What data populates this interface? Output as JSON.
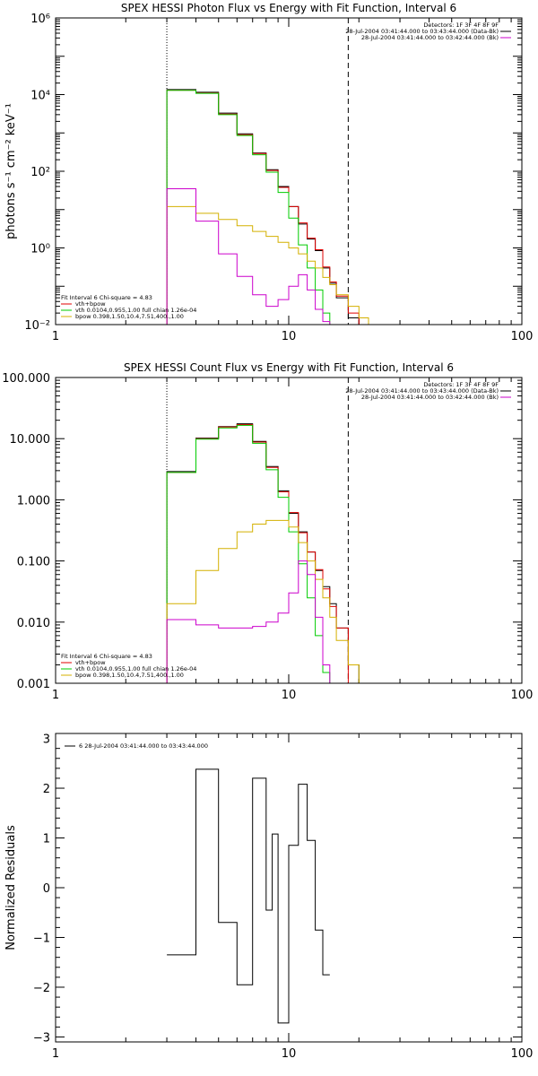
{
  "colors": {
    "data": "#000000",
    "model_total": "#e00000",
    "vth": "#00cc00",
    "bpow": "#d4b000",
    "background": "#cc00cc"
  },
  "chart_data": [
    {
      "type": "line",
      "title": "SPEX HESSI Photon Flux vs Energy with Fit Function, Interval 6",
      "xlabel": "",
      "ylabel": "photons s⁻¹ cm⁻² keV⁻¹",
      "xscale": "log",
      "yscale": "log",
      "xlim": [
        1,
        100
      ],
      "ylim": [
        0.01,
        1000000
      ],
      "xticks": [
        1,
        10,
        100
      ],
      "xtick_labels": [
        "1",
        "10",
        "100"
      ],
      "yticks": [
        0.01,
        1,
        100,
        10000,
        1000000
      ],
      "ytick_labels": [
        "10⁻²",
        "10⁰",
        "10²",
        "10⁴",
        "10⁶"
      ],
      "vlines": [
        {
          "x": 3.0,
          "style": "dotted"
        },
        {
          "x": 18.0,
          "style": "dashed"
        }
      ],
      "bin_edges": [
        3.0,
        4.0,
        5.0,
        6.0,
        7.0,
        8.0,
        9.0,
        10.0,
        11.0,
        12.0,
        13.0,
        14.0,
        15.0,
        16.0,
        18.0,
        20.0,
        22.0
      ],
      "series": [
        {
          "name": "",
          "color_key": "data",
          "values": [
            13500,
            11500,
            3300,
            950,
            300,
            110,
            40,
            12,
            4.2,
            1.7,
            0.85,
            0.3,
            0.12,
            0.05,
            0.015
          ]
        },
        {
          "name": "vth+bpow",
          "color_key": "model_total",
          "values": [
            13000,
            11000,
            3100,
            900,
            290,
            105,
            38,
            12,
            4.5,
            1.8,
            0.9,
            0.32,
            0.13,
            0.055,
            0.02,
            0.01
          ]
        },
        {
          "name": "vth 0.0104,0.955,1.00  full chian 1.26e-04",
          "color_key": "vth",
          "values": [
            12900,
            10800,
            3000,
            860,
            270,
            95,
            28,
            6,
            1.2,
            0.3,
            0.08,
            0.02
          ]
        },
        {
          "name": "bpow 0.398,1.50,10.4,7.51,400.,1.00",
          "color_key": "bpow",
          "values": [
            12,
            8,
            5.5,
            3.8,
            2.7,
            2.0,
            1.4,
            1.0,
            0.7,
            0.45,
            0.3,
            0.17,
            0.11,
            0.06,
            0.03,
            0.015
          ]
        },
        {
          "name": "",
          "color_key": "background",
          "values": [
            35,
            5,
            0.7,
            0.18,
            0.06,
            0.03,
            0.045,
            0.1,
            0.2,
            0.08,
            0.025,
            0.012
          ]
        }
      ],
      "top_right_labels": [
        "Detectors: 1F 3F 4F 8F 9F",
        "28-Jul-2004 03:41:44.000 to 03:43:44.000 (Data-Bk)",
        "28-Jul-2004 03:41:44.000 to 03:42:44.000 (Bk)"
      ],
      "fit_labels": [
        "Fit Interval 6   Chi-square = 4.83",
        "vth+bpow",
        "vth 0.0104,0.955,1.00  full chian 1.26e-04",
        "bpow 0.398,1.50,10.4,7.51,400.,1.00"
      ]
    },
    {
      "type": "line",
      "title": "SPEX HESSI Count Flux vs Energy with Fit Function, Interval 6",
      "xlabel": "",
      "ylabel": "",
      "xscale": "log",
      "yscale": "log",
      "xlim": [
        1,
        100
      ],
      "ylim": [
        0.001,
        100
      ],
      "xticks": [
        1,
        10,
        100
      ],
      "xtick_labels": [
        "1",
        "10",
        "100"
      ],
      "yticks": [
        0.001,
        0.01,
        0.1,
        1,
        10,
        100
      ],
      "ytick_labels": [
        "0.001",
        "0.010",
        "0.100",
        "1.000",
        "10.000",
        "100.000"
      ],
      "vlines": [
        {
          "x": 3.0,
          "style": "dotted"
        },
        {
          "x": 18.0,
          "style": "dashed"
        }
      ],
      "bin_edges": [
        3.0,
        4.0,
        5.0,
        6.0,
        7.0,
        8.0,
        9.0,
        10.0,
        11.0,
        12.0,
        13.0,
        14.0,
        15.0,
        16.0,
        18.0,
        20.0,
        22.0,
        24.0
      ],
      "series": [
        {
          "name": "",
          "color_key": "data",
          "values": [
            2.9,
            10.2,
            15.8,
            17.5,
            9.0,
            3.5,
            1.4,
            0.6,
            0.3,
            0.14,
            0.07,
            0.038,
            0.02,
            0.008,
            0.002
          ]
        },
        {
          "name": "vth+bpow",
          "color_key": "model_total",
          "values": [
            2.8,
            10.0,
            15.5,
            17.0,
            8.8,
            3.4,
            1.35,
            0.62,
            0.29,
            0.14,
            0.072,
            0.035,
            0.018,
            0.008
          ]
        },
        {
          "name": "vth 0.0104,0.955,1.00  full chian 1.26e-04",
          "color_key": "vth",
          "values": [
            2.8,
            9.8,
            15.0,
            16.5,
            8.4,
            3.1,
            1.1,
            0.3,
            0.09,
            0.025,
            0.006,
            0.0015
          ]
        },
        {
          "name": "bpow 0.398,1.50,10.4,7.51,400.,1.00",
          "color_key": "bpow",
          "values": [
            0.02,
            0.07,
            0.16,
            0.3,
            0.4,
            0.46,
            0.46,
            0.36,
            0.2,
            0.1,
            0.05,
            0.025,
            0.012,
            0.005,
            0.002
          ]
        },
        {
          "name": "",
          "color_key": "background",
          "values": [
            0.011,
            0.009,
            0.008,
            0.008,
            0.0085,
            0.01,
            0.014,
            0.03,
            0.1,
            0.06,
            0.012,
            0.002
          ]
        }
      ],
      "top_right_labels": [
        "Detectors: 1F 3F 4F 8F 9F",
        "28-Jul-2004 03:41:44.000 to 03:43:44.000 (Data-Bk)",
        "28-Jul-2004 03:41:44.000 to 03:42:44.000 (Bk)"
      ],
      "fit_labels": [
        "Fit Interval 6   Chi-square = 4.83",
        "vth+bpow",
        "vth 0.0104,0.955,1.00  full chian 1.26e-04",
        "bpow 0.398,1.50,10.4,7.51,400.,1.00"
      ]
    },
    {
      "type": "line",
      "title": "",
      "xlabel": "",
      "ylabel": "Normalized Residuals",
      "xscale": "log",
      "yscale": "linear",
      "xlim": [
        1,
        100
      ],
      "ylim": [
        -3.1,
        3.1
      ],
      "xticks": [
        1,
        10,
        100
      ],
      "xtick_labels": [
        "1",
        "10",
        "100"
      ],
      "yticks": [
        -3,
        -2,
        -1,
        0,
        1,
        2,
        3
      ],
      "ytick_labels": [
        "−3",
        "−2",
        "−1",
        "0",
        "1",
        "2",
        "3"
      ],
      "bin_edges": [
        3.0,
        4.0,
        5.0,
        6.0,
        7.0,
        8.0,
        8.5,
        9.0,
        10.0,
        11.0,
        12.0,
        13.0,
        14.0,
        15.0,
        16.0,
        18.0
      ],
      "series": [
        {
          "name": "6  28-Jul-2004 03:41:44.000 to 03:43:44.000",
          "color_key": "data",
          "values": [
            -1.35,
            2.38,
            -0.7,
            -1.95,
            2.2,
            -0.45,
            1.08,
            -2.72,
            0.85,
            2.08,
            0.95,
            -0.85,
            -1.75
          ]
        }
      ]
    }
  ]
}
